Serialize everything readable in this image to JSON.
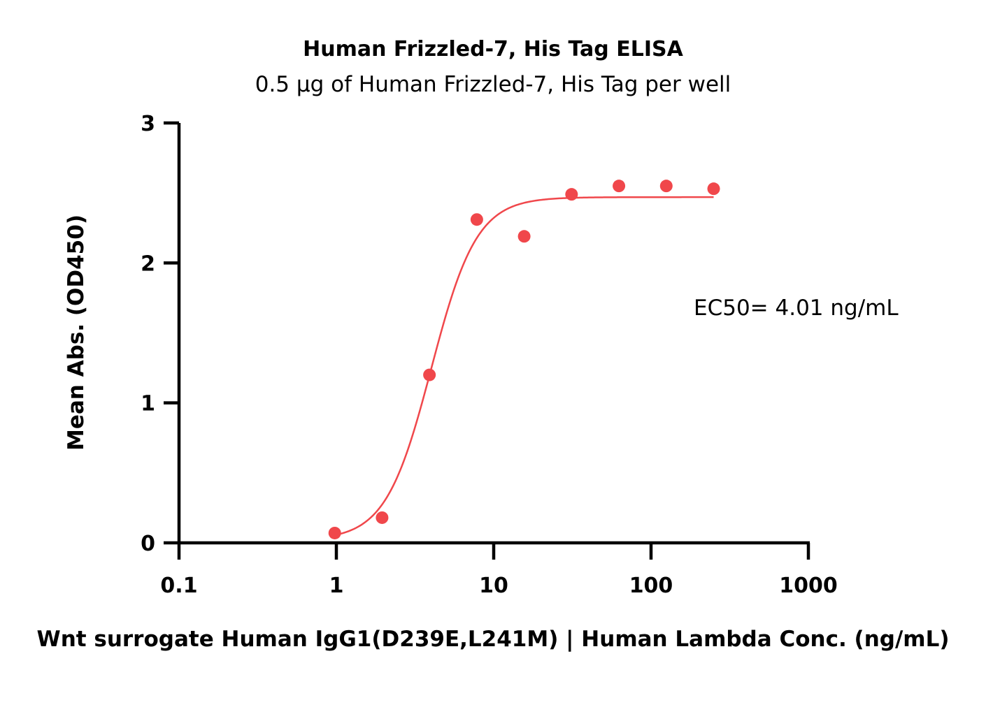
{
  "chart_data": {
    "type": "scatter",
    "title": "Human Frizzled-7, His Tag ELISA",
    "subtitle": "0.5 μg of Human Frizzled-7, His Tag per well",
    "xlabel": "Wnt surrogate Human IgG1(D239E,L241M) | Human Lambda Conc. (ng/mL)",
    "ylabel": "Mean Abs. (OD450)",
    "x_scale": "log",
    "xlim": [
      0.1,
      1000
    ],
    "ylim": [
      0,
      3
    ],
    "x_ticks": [
      0.1,
      1,
      10,
      100,
      1000
    ],
    "x_tick_labels": [
      "0.1",
      "1",
      "10",
      "100",
      "1000"
    ],
    "y_ticks": [
      0,
      1,
      2,
      3
    ],
    "y_tick_labels": [
      "0",
      "1",
      "2",
      "3"
    ],
    "annotation": "EC50= 4.01 ng/mL",
    "color": "#f0474b",
    "series": [
      {
        "x": [
          0.977,
          1.953,
          3.906,
          7.813,
          15.625,
          31.25,
          62.5,
          125,
          250
        ],
        "y": [
          0.07,
          0.18,
          1.2,
          2.31,
          2.19,
          2.49,
          2.55,
          2.55,
          2.53
        ]
      }
    ],
    "fit": {
      "model": "4PL",
      "bottom": 0.02,
      "top": 2.47,
      "ec50": 4.01,
      "hill": 3.0,
      "x_range": [
        0.977,
        250
      ]
    },
    "grid": false,
    "legend": "none"
  }
}
